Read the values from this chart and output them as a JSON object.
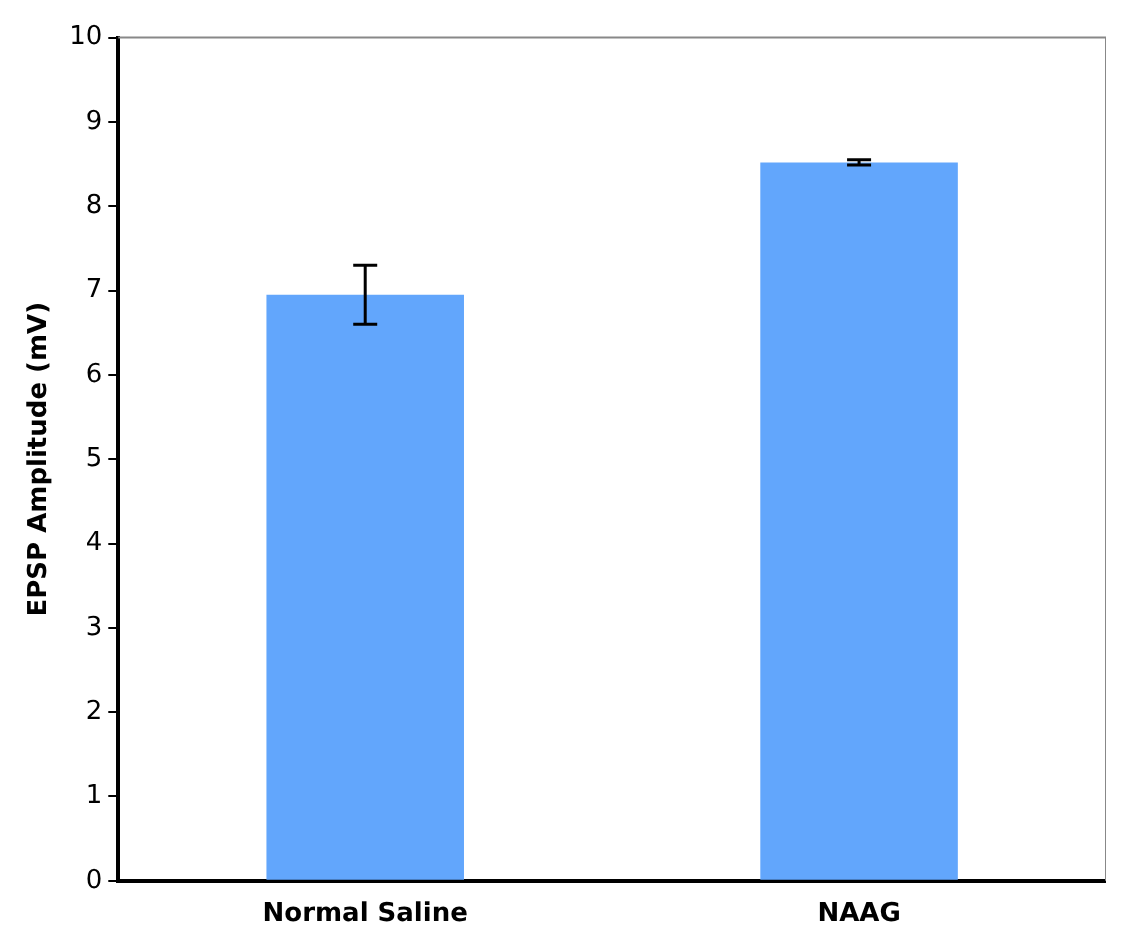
{
  "chart_data": {
    "type": "bar",
    "ylabel": "EPSP Amplitude (mV)",
    "categories": [
      "Normal Saline",
      "NAAG"
    ],
    "values": [
      6.95,
      8.52
    ],
    "errors": [
      0.35,
      0.03
    ],
    "color": "#62a6fc",
    "ylim": [
      0,
      10
    ],
    "yticks": [
      0,
      1,
      2,
      3,
      4,
      5,
      6,
      7,
      8,
      9,
      10
    ],
    "grid": false
  }
}
